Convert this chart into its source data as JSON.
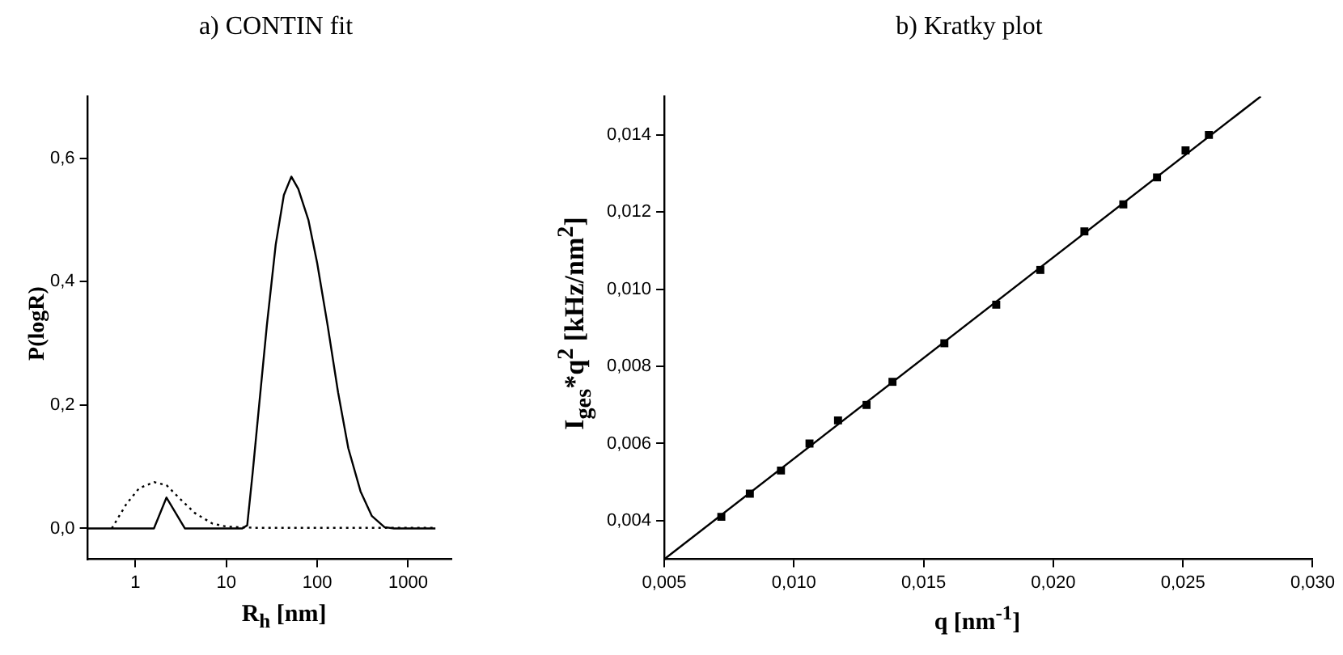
{
  "chart_data": [
    {
      "type": "line",
      "title": "a) CONTIN fit",
      "xlabel": "R$_{h}$ [nm]",
      "ylabel": "P(logR)",
      "log": "x",
      "grid": false,
      "legend": false,
      "xlim": [
        0.3,
        3000
      ],
      "xticks": [
        1,
        10,
        100,
        1000
      ],
      "ylim": [
        -0.05,
        0.7
      ],
      "yticks": [
        {
          "value": 0,
          "label": "0,0"
        },
        {
          "value": 0.2,
          "label": "0,2"
        },
        {
          "value": 0.4,
          "label": "0,4"
        },
        {
          "value": 0.6,
          "label": "0,6"
        }
      ],
      "series": [
        {
          "color": "#000000",
          "marker": "none",
          "line_style": "solid",
          "x": [
            0.3,
            1.6,
            2.2,
            3.5,
            15,
            17,
            19.5,
            23,
            28,
            35,
            43,
            52,
            62,
            80,
            100,
            130,
            170,
            220,
            300,
            400,
            550,
            700,
            2000
          ],
          "values": [
            0,
            0,
            0.05,
            0,
            0,
            0.005,
            0.09,
            0.2,
            0.33,
            0.46,
            0.54,
            0.57,
            0.55,
            0.5,
            0.43,
            0.33,
            0.22,
            0.13,
            0.06,
            0.02,
            0.002,
            0,
            0
          ]
        },
        {
          "color": "#000000",
          "marker": "none",
          "line_style": "dotted",
          "x": [
            0.55,
            0.8,
            1.1,
            1.6,
            2.2,
            3,
            4.5,
            7,
            10,
            20,
            1000,
            2000
          ],
          "values": [
            0,
            0.04,
            0.065,
            0.075,
            0.07,
            0.05,
            0.025,
            0.008,
            0.003,
            0.001,
            0.001,
            0.001
          ]
        }
      ]
    },
    {
      "type": "scatter",
      "title": "b) Kratky plot",
      "xlabel": "q [nm$^{-1}$]",
      "ylabel": "I$_{ges}$*q$^{2}$ [kHz/nm$^{2}$]",
      "grid": false,
      "legend": false,
      "xlim": [
        0.005,
        0.03
      ],
      "xticks": [
        {
          "value": 0.005,
          "label": "0,005"
        },
        {
          "value": 0.01,
          "label": "0,010"
        },
        {
          "value": 0.015,
          "label": "0,015"
        },
        {
          "value": 0.02,
          "label": "0,020"
        },
        {
          "value": 0.025,
          "label": "0,025"
        },
        {
          "value": 0.03,
          "label": "0,030"
        }
      ],
      "ylim": [
        0.003,
        0.015
      ],
      "yticks": [
        {
          "value": 0.004,
          "label": "0,004"
        },
        {
          "value": 0.006,
          "label": "0,006"
        },
        {
          "value": 0.008,
          "label": "0,008"
        },
        {
          "value": 0.01,
          "label": "0,010"
        },
        {
          "value": 0.012,
          "label": "0,012"
        },
        {
          "value": 0.014,
          "label": "0,014"
        }
      ],
      "series": [
        {
          "type": "scatter",
          "color": "#000000",
          "marker": "square",
          "x": [
            0.0072,
            0.0083,
            0.0095,
            0.0106,
            0.0117,
            0.0128,
            0.0138,
            0.0158,
            0.0178,
            0.0195,
            0.0212,
            0.0227,
            0.024,
            0.0251,
            0.026
          ],
          "values": [
            0.0041,
            0.0047,
            0.0053,
            0.006,
            0.0066,
            0.007,
            0.0076,
            0.0086,
            0.0096,
            0.0105,
            0.0115,
            0.0122,
            0.0129,
            0.0136,
            0.014
          ]
        },
        {
          "type": "line",
          "color": "#000000",
          "marker": "none",
          "line_style": "solid",
          "x": [
            0.005,
            0.028
          ],
          "values": [
            0.003,
            0.015
          ]
        }
      ]
    }
  ]
}
